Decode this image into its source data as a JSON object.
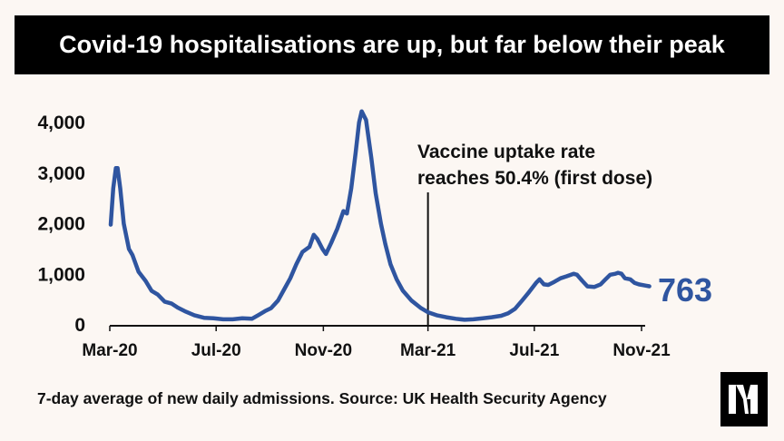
{
  "header": {
    "title": "Covid-19 hospitalisations are up, but far below their peak"
  },
  "footer": {
    "source": "7-day average of new daily admissions. Source: UK Health Security Agency"
  },
  "logo": {
    "icon": "nm-logo-icon"
  },
  "colors": {
    "line": "#2f55a0",
    "background": "#fcf7f3",
    "title_bg": "#000000",
    "text": "#111111"
  },
  "chart_data": {
    "type": "line",
    "title": "Covid-19 hospitalisations are up, but far below their peak",
    "xlabel": "",
    "ylabel": "",
    "ylim": [
      0,
      4000
    ],
    "yticks": [
      {
        "value": 0,
        "label": "0"
      },
      {
        "value": 1000,
        "label": "1,000"
      },
      {
        "value": 2000,
        "label": "2,000"
      },
      {
        "value": 3000,
        "label": "3,000"
      },
      {
        "value": 4000,
        "label": "4,000"
      }
    ],
    "xticks": [
      {
        "date": "2020-03-01",
        "label": "Mar-20"
      },
      {
        "date": "2020-07-01",
        "label": "Jul-20"
      },
      {
        "date": "2020-11-01",
        "label": "Nov-20"
      },
      {
        "date": "2021-03-01",
        "label": "Mar-21"
      },
      {
        "date": "2021-07-01",
        "label": "Jul-21"
      },
      {
        "date": "2021-11-01",
        "label": "Nov-21"
      }
    ],
    "grid": false,
    "series": [
      {
        "points": [
          [
            "2020-03-02",
            1980
          ],
          [
            "2020-03-05",
            2700
          ],
          [
            "2020-03-08",
            3100
          ],
          [
            "2020-03-10",
            3100
          ],
          [
            "2020-03-13",
            2700
          ],
          [
            "2020-03-17",
            2000
          ],
          [
            "2020-03-23",
            1500
          ],
          [
            "2020-03-27",
            1380
          ],
          [
            "2020-04-03",
            1050
          ],
          [
            "2020-04-11",
            870
          ],
          [
            "2020-04-18",
            670
          ],
          [
            "2020-04-25",
            600
          ],
          [
            "2020-05-03",
            460
          ],
          [
            "2020-05-11",
            420
          ],
          [
            "2020-05-18",
            340
          ],
          [
            "2020-05-26",
            270
          ],
          [
            "2020-06-06",
            190
          ],
          [
            "2020-06-17",
            140
          ],
          [
            "2020-06-28",
            130
          ],
          [
            "2020-07-09",
            110
          ],
          [
            "2020-07-20",
            110
          ],
          [
            "2020-07-31",
            130
          ],
          [
            "2020-08-11",
            120
          ],
          [
            "2020-08-19",
            200
          ],
          [
            "2020-08-26",
            270
          ],
          [
            "2020-09-02",
            330
          ],
          [
            "2020-09-10",
            480
          ],
          [
            "2020-09-17",
            700
          ],
          [
            "2020-09-24",
            920
          ],
          [
            "2020-10-01",
            1200
          ],
          [
            "2020-10-08",
            1440
          ],
          [
            "2020-10-16",
            1540
          ],
          [
            "2020-10-21",
            1780
          ],
          [
            "2020-10-25",
            1700
          ],
          [
            "2020-10-31",
            1500
          ],
          [
            "2020-11-04",
            1400
          ],
          [
            "2020-11-10",
            1620
          ],
          [
            "2020-11-17",
            1900
          ],
          [
            "2020-11-24",
            2250
          ],
          [
            "2020-11-28",
            2200
          ],
          [
            "2020-12-03",
            2700
          ],
          [
            "2020-12-08",
            3400
          ],
          [
            "2020-12-12",
            4000
          ],
          [
            "2020-12-15",
            4220
          ],
          [
            "2020-12-20",
            4050
          ],
          [
            "2020-12-26",
            3300
          ],
          [
            "2020-12-31",
            2600
          ],
          [
            "2021-01-06",
            2000
          ],
          [
            "2021-01-11",
            1600
          ],
          [
            "2021-01-17",
            1200
          ],
          [
            "2021-01-24",
            900
          ],
          [
            "2021-01-31",
            680
          ],
          [
            "2021-02-10",
            480
          ],
          [
            "2021-02-21",
            330
          ],
          [
            "2021-03-01",
            250
          ],
          [
            "2021-03-11",
            190
          ],
          [
            "2021-03-22",
            150
          ],
          [
            "2021-04-02",
            120
          ],
          [
            "2021-04-12",
            100
          ],
          [
            "2021-04-22",
            110
          ],
          [
            "2021-05-03",
            130
          ],
          [
            "2021-05-13",
            150
          ],
          [
            "2021-05-24",
            180
          ],
          [
            "2021-06-01",
            230
          ],
          [
            "2021-06-09",
            320
          ],
          [
            "2021-06-17",
            480
          ],
          [
            "2021-06-25",
            650
          ],
          [
            "2021-07-03",
            830
          ],
          [
            "2021-07-07",
            900
          ],
          [
            "2021-07-12",
            800
          ],
          [
            "2021-07-17",
            790
          ],
          [
            "2021-07-24",
            850
          ],
          [
            "2021-07-31",
            920
          ],
          [
            "2021-08-07",
            960
          ],
          [
            "2021-08-15",
            1010
          ],
          [
            "2021-08-19",
            990
          ],
          [
            "2021-08-25",
            870
          ],
          [
            "2021-08-31",
            760
          ],
          [
            "2021-09-08",
            750
          ],
          [
            "2021-09-15",
            800
          ],
          [
            "2021-09-20",
            890
          ],
          [
            "2021-09-26",
            990
          ],
          [
            "2021-10-02",
            1010
          ],
          [
            "2021-10-05",
            1030
          ],
          [
            "2021-10-09",
            1010
          ],
          [
            "2021-10-13",
            920
          ],
          [
            "2021-10-19",
            900
          ],
          [
            "2021-10-24",
            830
          ],
          [
            "2021-10-29",
            800
          ],
          [
            "2021-11-06",
            775
          ],
          [
            "2021-11-10",
            763
          ]
        ]
      }
    ],
    "latest_value_label": "763",
    "annotation": {
      "date": "2021-03-01",
      "lines": [
        "Vaccine uptake rate",
        "reaches 50.4% (first dose)"
      ]
    }
  }
}
